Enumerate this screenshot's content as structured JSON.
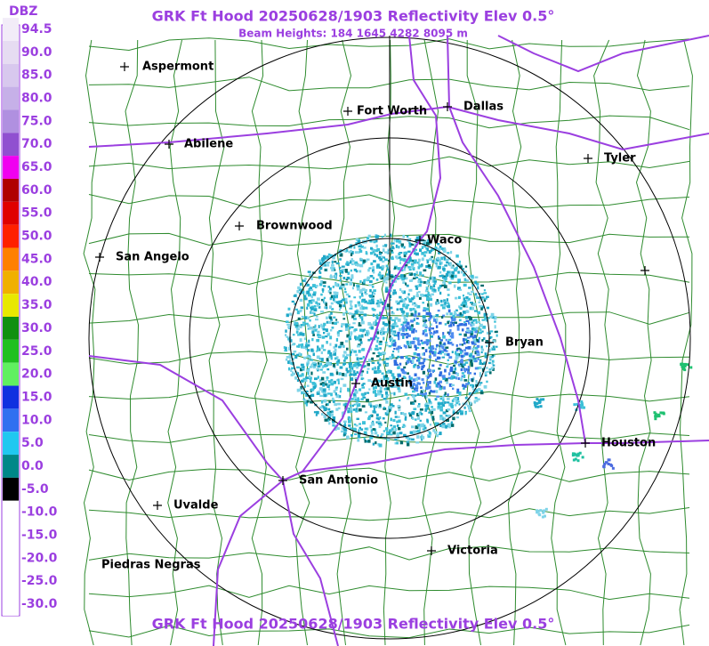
{
  "header": {
    "title": "GRK Ft Hood 20250628/1903 Reflectivity Elev 0.5°",
    "beam_heights": "Beam Heights: 184 1645 4282 8095 m",
    "footer": "GRK Ft Hood 20250628/1903 Reflectivity Elev 0.5°"
  },
  "legend": {
    "unit": "DBZ",
    "labels": [
      "94.5",
      "90.0",
      "85.0",
      "80.0",
      "75.0",
      "70.0",
      "65.0",
      "60.0",
      "55.0",
      "50.0",
      "45.0",
      "40.0",
      "35.0",
      "30.0",
      "25.0",
      "20.0",
      "15.0",
      "10.0",
      "5.0",
      "0.0",
      "-5.0",
      "-10.0",
      "-15.0",
      "-20.0",
      "-25.0",
      "-30.0"
    ]
  },
  "cities": [
    "Aspermont",
    "Fort Worth",
    "Dallas",
    "Abilene",
    "Tyler",
    "Brownwood",
    "Waco",
    "San Angelo",
    "Bryan",
    "Austin",
    "Houston",
    "San Antonio",
    "Uvalde",
    "Victoria",
    "Piedras Negras"
  ]
}
